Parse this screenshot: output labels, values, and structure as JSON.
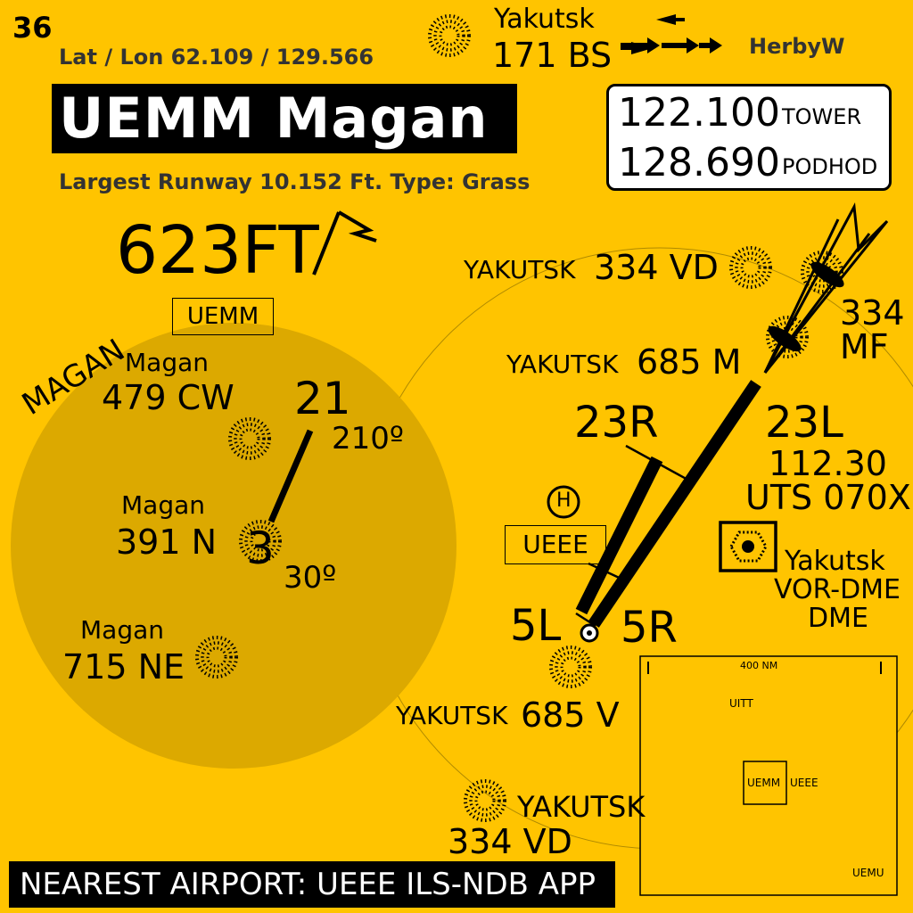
{
  "header": {
    "page_number": "36",
    "lat_lon": "Lat / Lon 62.109 /  129.566",
    "airport_code_name": "UEMM Magan",
    "runway_info": "Largest Runway 10.152 Ft. Type:  Grass",
    "author": "HerbyW"
  },
  "top_navaid": {
    "name": "Yakutsk",
    "ident": "171 BS"
  },
  "frequencies": [
    {
      "freq": "122.100",
      "label": "TOWER"
    },
    {
      "freq": "128.690",
      "label": "PODHOD"
    }
  ],
  "elevation": "623FT",
  "local_area": {
    "region_label": "MAGAN",
    "airport_box": "UEMM",
    "runway_end_north": "21",
    "runway_heading_north": "210º",
    "runway_end_south": "3",
    "runway_heading_south": "30º",
    "ndbs": [
      {
        "name": "Magan",
        "ident": "479 CW"
      },
      {
        "name": "Magan",
        "ident": "391 N"
      },
      {
        "name": "Magan",
        "ident": "715 NE"
      }
    ]
  },
  "nearby_airport": {
    "box": "UEEE",
    "runways": [
      "23R",
      "23L",
      "5L",
      "5R"
    ],
    "ils": {
      "freq": "112.30",
      "ident": "UTS 070X"
    },
    "vor": {
      "name": "Yakutsk",
      "type": "VOR-DME",
      "sub": "DME"
    },
    "navaids": [
      {
        "name": "YAKUTSK",
        "ident": "334 VD"
      },
      {
        "name": "",
        "ident": "334 MF"
      },
      {
        "name": "YAKUTSK",
        "ident": "685 M"
      },
      {
        "name": "YAKUTSK",
        "ident": "685 V"
      },
      {
        "name": "YAKUTSK",
        "ident": "334 VD"
      }
    ]
  },
  "overview_map": {
    "scale": "400 NM",
    "labels": [
      "UITT",
      "UEMM",
      "UEEE",
      "UEMU"
    ]
  },
  "footer": {
    "nearest_airport": "NEAREST  AIRPORT: UEEE ILS-NDB APP"
  },
  "colors": {
    "background": "#FFC400",
    "local_circle": "#DCA900",
    "ink": "#000000"
  }
}
